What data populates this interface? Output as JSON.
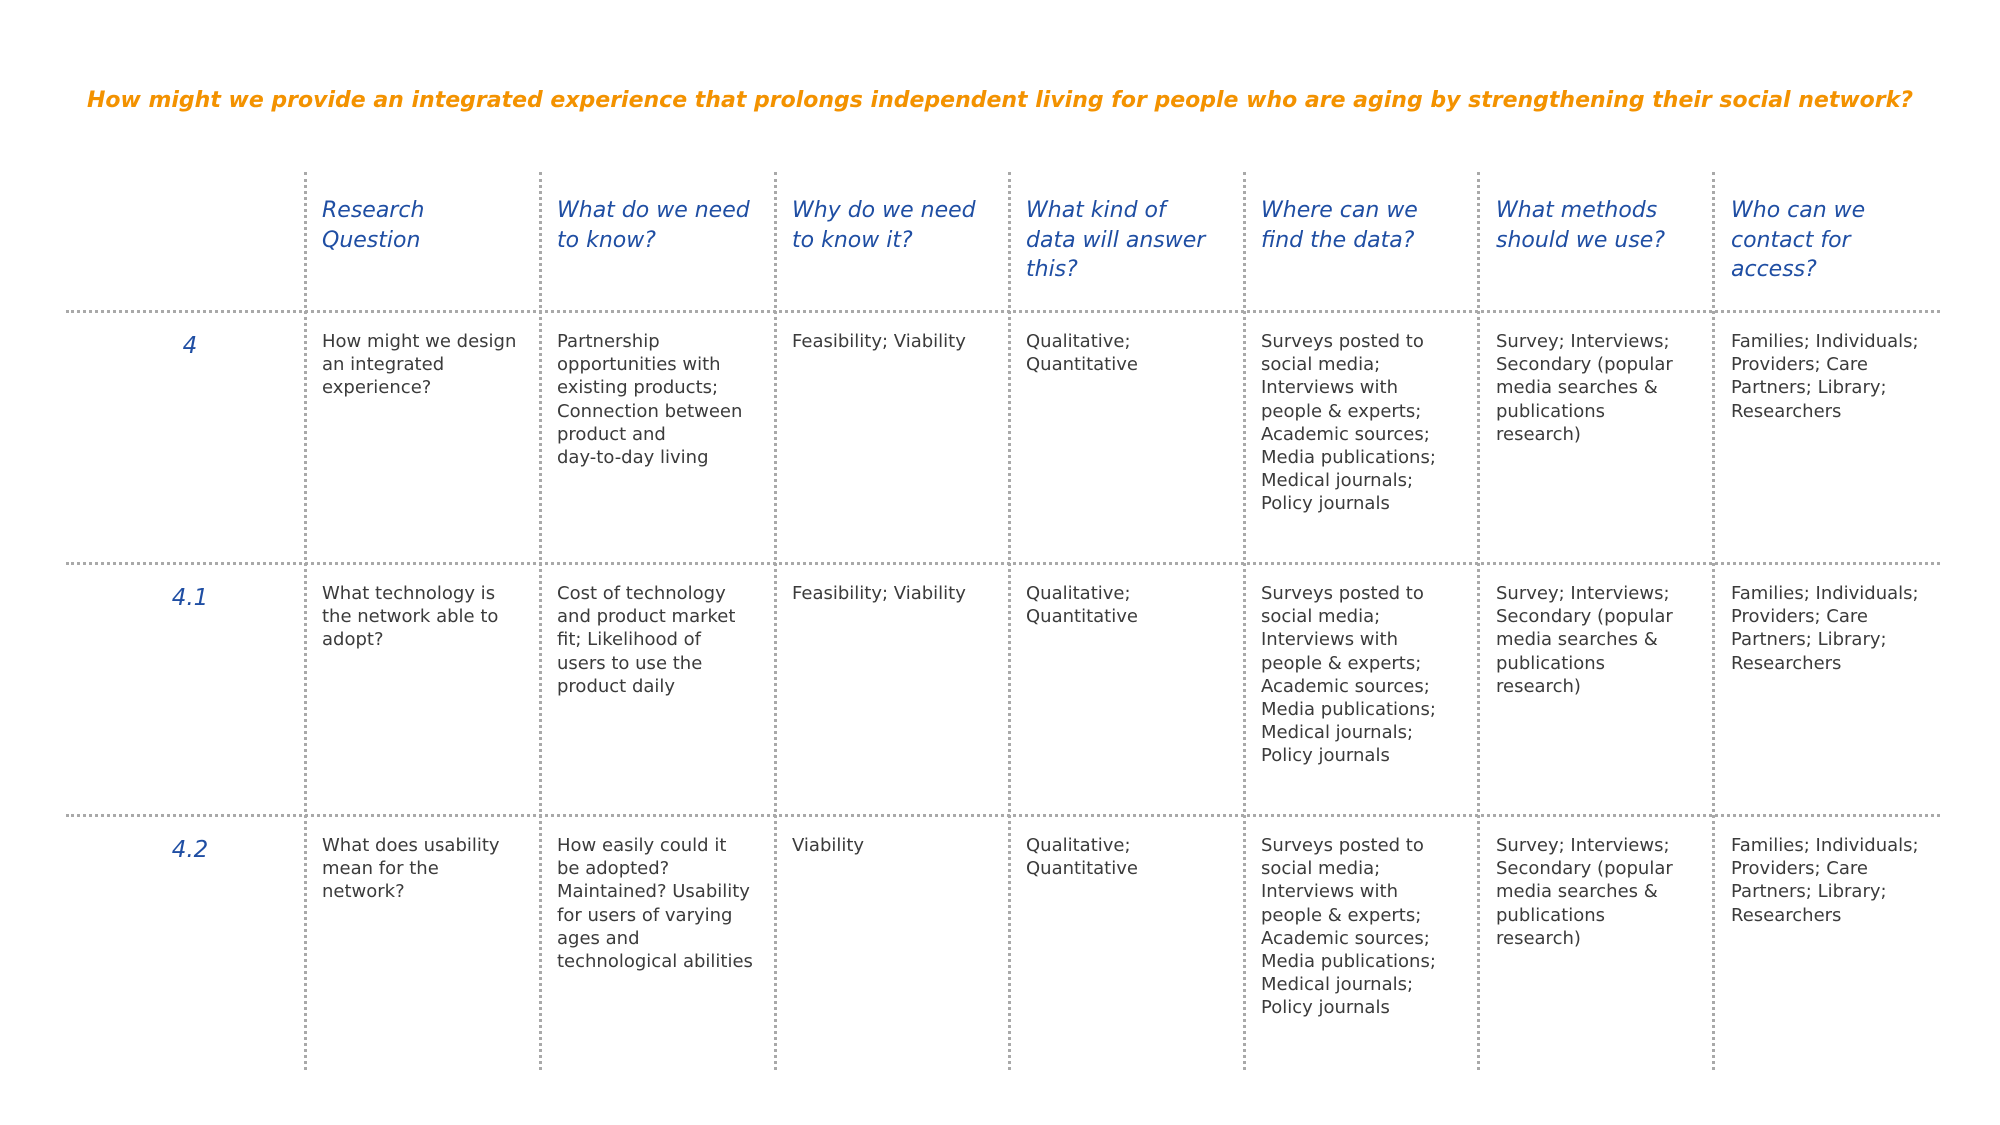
{
  "title": "How might we provide an integrated experience that prolongs independent living for people who are aging by strengthening their social network?",
  "columns": [
    [
      "Research",
      "Question"
    ],
    [
      "What do we need",
      "to know?"
    ],
    [
      "Why do we need",
      "to know it?"
    ],
    [
      "What kind of",
      "data will answer",
      "this?"
    ],
    [
      "Where can we",
      "find the data?"
    ],
    [
      "What methods",
      "should we use?"
    ],
    [
      "Who can we",
      "contact for",
      "access?"
    ]
  ],
  "rows": [
    {
      "number": "4",
      "cells": [
        [
          "How might we design",
          "an integrated",
          "experience?"
        ],
        [
          "Partnership",
          "opportunities with",
          "existing products;",
          "Connection between",
          "product and",
          "day-to-day living"
        ],
        [
          "Feasibility; Viability"
        ],
        [
          "Qualitative;",
          "Quantitative"
        ],
        [
          "Surveys posted to",
          "social media;",
          "Interviews with",
          "people & experts;",
          "Academic sources;",
          "Media publications;",
          "Medical journals;",
          "Policy journals"
        ],
        [
          "Survey; Interviews;",
          "Secondary (popular",
          "media searches &",
          "publications",
          "research)"
        ],
        [
          "Families; Individuals;",
          "Providers; Care",
          "Partners; Library;",
          "Researchers"
        ]
      ]
    },
    {
      "number": "4.1",
      "cells": [
        [
          "What technology is",
          "the network able to",
          "adopt?"
        ],
        [
          "Cost of technology",
          "and product market",
          "fit; Likelihood of",
          "users to use the",
          "product daily"
        ],
        [
          "Feasibility; Viability"
        ],
        [
          "Qualitative;",
          "Quantitative"
        ],
        [
          "Surveys posted to",
          "social media;",
          "Interviews with",
          "people & experts;",
          "Academic sources;",
          "Media publications;",
          "Medical journals;",
          "Policy journals"
        ],
        [
          "Survey; Interviews;",
          "Secondary (popular",
          "media searches &",
          "publications",
          "research)"
        ],
        [
          "Families; Individuals;",
          "Providers; Care",
          "Partners; Library;",
          "Researchers"
        ]
      ]
    },
    {
      "number": "4.2",
      "cells": [
        [
          "What does usability",
          "mean for the",
          "network?"
        ],
        [
          "How easily could it",
          "be adopted?",
          "Maintained? Usability",
          "for users of varying",
          "ages and",
          "technological abilities"
        ],
        [
          "Viability"
        ],
        [
          "Qualitative;",
          "Quantitative"
        ],
        [
          "Surveys posted to",
          "social media;",
          "Interviews with",
          "people & experts;",
          "Academic sources;",
          "Media publications;",
          "Medical journals;",
          "Policy journals"
        ],
        [
          "Survey; Interviews;",
          "Secondary (popular",
          "media searches &",
          "publications",
          "research)"
        ],
        [
          "Families; Individuals;",
          "Providers; Care",
          "Partners; Library;",
          "Researchers"
        ]
      ]
    }
  ]
}
